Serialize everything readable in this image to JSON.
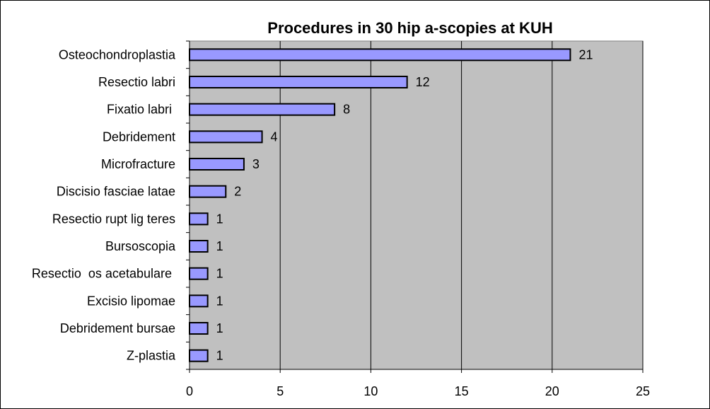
{
  "chart_data": {
    "type": "bar",
    "orientation": "horizontal",
    "title": "Procedures in 30 hip a-scopies at KUH",
    "xlabel": "",
    "ylabel": "",
    "categories": [
      "Osteochondroplastia",
      "Resectio labri",
      "Fixatio labri ",
      "Debridement",
      "Microfracture",
      "Discisio fasciae latae",
      "Resectio rupt lig teres",
      "Bursoscopia",
      "Resectio  os acetabulare ",
      "Excisio lipomae",
      "Debridement bursae",
      "Z-plastia"
    ],
    "values": [
      21,
      12,
      8,
      4,
      3,
      2,
      1,
      1,
      1,
      1,
      1,
      1
    ],
    "data_labels": [
      "21",
      "12",
      "8",
      "4",
      "3",
      "2",
      "1",
      "1",
      "1",
      "1",
      "1",
      "1"
    ],
    "xlim": [
      0,
      25
    ],
    "x_ticks": [
      0,
      5,
      10,
      15,
      20,
      25
    ],
    "x_tick_labels": [
      "0",
      "5",
      "10",
      "15",
      "20",
      "25"
    ],
    "grid": "vertical",
    "legend": "none",
    "colors": {
      "bar_fill": "#9999FF",
      "bar_stroke": "#000000",
      "plot_background": "#C0C0C0",
      "gridline": "#000000",
      "chart_background": "#FFFFFF"
    }
  }
}
